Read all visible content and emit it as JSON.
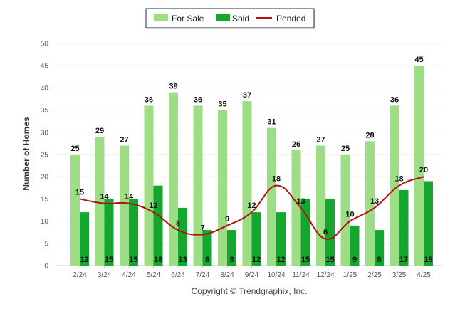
{
  "legend": {
    "for_sale": "For Sale",
    "sold": "Sold",
    "pended": "Pended"
  },
  "copyright": "Copyright © Trendgraphix, Inc.",
  "colors": {
    "for_sale": "#9ddd86",
    "sold": "#14a62e",
    "pended": "#b31010",
    "grid": "#e8e8e8",
    "axis": "#cccccc"
  },
  "chart_data": {
    "type": "bar",
    "title": "",
    "xlabel": "",
    "ylabel": "Number of Homes",
    "ylim": [
      0,
      50
    ],
    "yticks": [
      0,
      5,
      10,
      15,
      20,
      25,
      30,
      35,
      40,
      45,
      50
    ],
    "grid": true,
    "legend_position": "top-center",
    "categories": [
      "2/24",
      "3/24",
      "4/24",
      "5/24",
      "6/24",
      "7/24",
      "8/24",
      "9/24",
      "10/24",
      "11/24",
      "12/24",
      "1/25",
      "2/25",
      "3/25",
      "4/25"
    ],
    "series": [
      {
        "name": "For Sale",
        "type": "bar",
        "values": [
          25,
          29,
          27,
          36,
          39,
          36,
          35,
          37,
          31,
          26,
          27,
          25,
          28,
          36,
          45
        ]
      },
      {
        "name": "Sold",
        "type": "bar",
        "values": [
          12,
          15,
          15,
          18,
          13,
          8,
          8,
          12,
          12,
          15,
          15,
          9,
          8,
          17,
          19
        ]
      },
      {
        "name": "Pended",
        "type": "line",
        "values": [
          15,
          14,
          14,
          12,
          8,
          7,
          9,
          12,
          18,
          13,
          6,
          10,
          13,
          18,
          20
        ]
      }
    ]
  }
}
